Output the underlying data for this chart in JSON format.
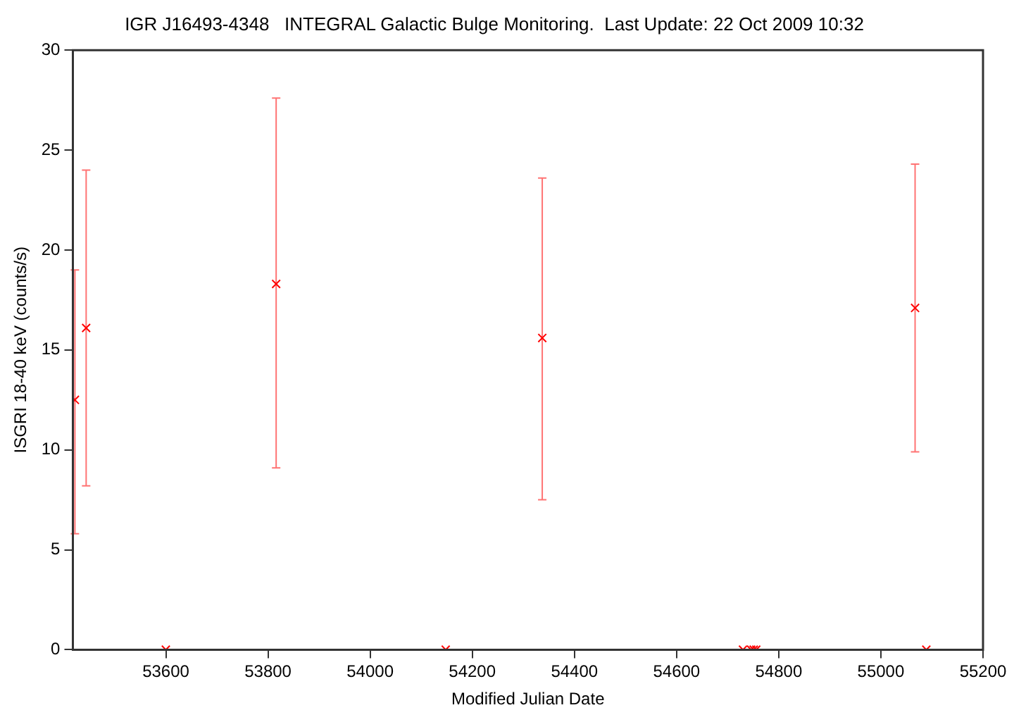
{
  "chart_data": {
    "type": "scatter",
    "title": "IGR J16493-4348   INTEGRAL Galactic Bulge Monitoring.  Last Update: 22 Oct 2009 10:32",
    "xlabel": "Modified Julian Date",
    "ylabel": "ISGRI 18-40 keV (counts/s)",
    "x": [
      53422,
      53444,
      53600,
      53816,
      54148,
      54337,
      54730,
      54746,
      54751,
      54756,
      55067,
      55089
    ],
    "series": [
      {
        "color": "#ff0000",
        "values": [
          12.5,
          16.1,
          0,
          18.3,
          0,
          15.6,
          0,
          0,
          0,
          0,
          17.1,
          0
        ],
        "errors": [
          [
            5.8,
            19.0
          ],
          [
            8.2,
            24.0
          ],
          null,
          [
            9.1,
            27.6
          ],
          null,
          [
            7.5,
            23.6
          ],
          null,
          null,
          null,
          null,
          [
            9.9,
            24.3
          ],
          null
        ]
      }
    ],
    "xlim": [
      53418,
      55200
    ],
    "xticks": [
      53600,
      53800,
      54000,
      54200,
      54400,
      54600,
      54800,
      55000,
      55200
    ],
    "ylim": [
      0,
      30
    ],
    "yticks": [
      0,
      5,
      10,
      15,
      20,
      25,
      30
    ],
    "grid": false,
    "legend": false,
    "marker": "cross"
  }
}
